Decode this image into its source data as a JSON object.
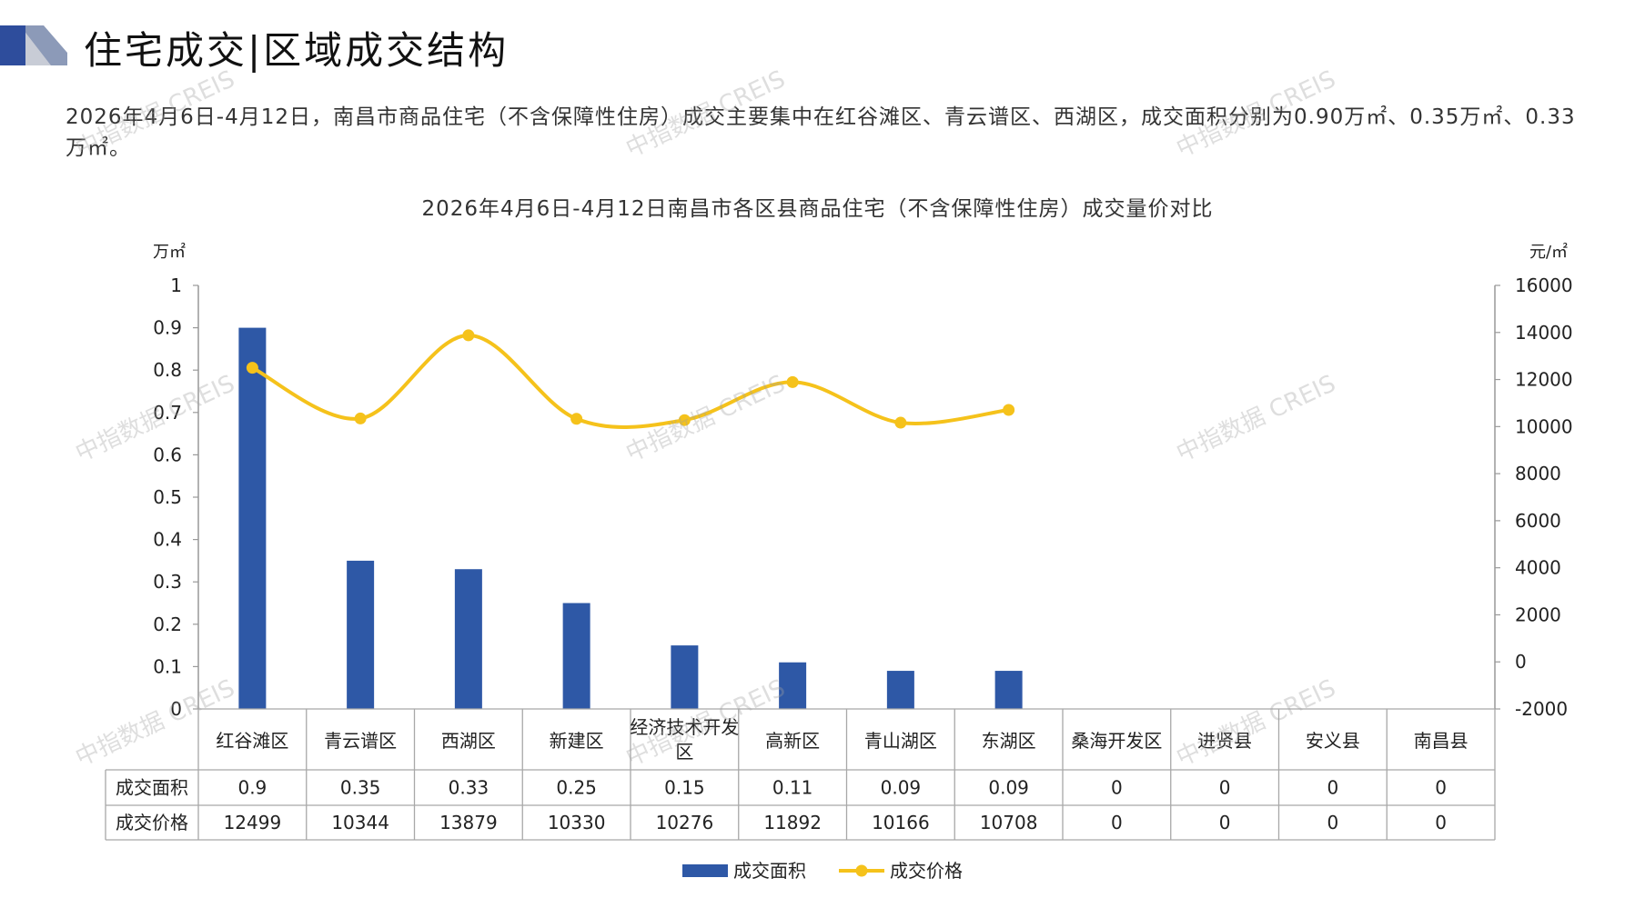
{
  "header": {
    "title": "住宅成交|区域成交结构",
    "deco_colors": [
      "#2e4d9c",
      "#8c9ab8",
      "#c8ccd6"
    ]
  },
  "description": "2026年4月6日-4月12日，南昌市商品住宅（不含保障性住房）成交主要集中在红谷滩区、青云谱区、西湖区，成交面积分别为0.90万㎡、0.35万㎡、0.33万㎡。",
  "watermark": "中指数据 CREIS",
  "chart_data": {
    "type": "bar",
    "title": "2026年4月6日-4月12日南昌市各区县商品住宅（不含保障性住房）成交量价对比",
    "categories": [
      "红谷滩区",
      "青云谱区",
      "西湖区",
      "新建区",
      "经济技术开发区",
      "高新区",
      "青山湖区",
      "东湖区",
      "桑海开发区",
      "进贤县",
      "安义县",
      "南昌县"
    ],
    "ylabel_left": "万㎡",
    "ylabel_right": "元/㎡",
    "ylim_left": [
      0,
      1
    ],
    "yticks_left": [
      "0",
      "0.1",
      "0.2",
      "0.3",
      "0.4",
      "0.5",
      "0.6",
      "0.7",
      "0.8",
      "0.9",
      "1"
    ],
    "ylim_right": [
      -2000,
      16000
    ],
    "yticks_right": [
      "-2000",
      "0",
      "2000",
      "4000",
      "6000",
      "8000",
      "10000",
      "12000",
      "14000",
      "16000"
    ],
    "series": [
      {
        "name": "成交面积",
        "kind": "bar",
        "axis": "left",
        "color": "#2e58a6",
        "values": [
          0.9,
          0.35,
          0.33,
          0.25,
          0.15,
          0.11,
          0.09,
          0.09,
          0,
          0,
          0,
          0
        ],
        "labels": [
          "0.9",
          "0.35",
          "0.33",
          "0.25",
          "0.15",
          "0.11",
          "0.09",
          "0.09",
          "0",
          "0",
          "0",
          "0"
        ]
      },
      {
        "name": "成交价格",
        "kind": "line",
        "axis": "right",
        "color": "#f5c21b",
        "values": [
          12499,
          10344,
          13879,
          10330,
          10276,
          11892,
          10166,
          10708,
          0,
          0,
          0,
          0
        ],
        "labels": [
          "12499",
          "10344",
          "13879",
          "10330",
          "10276",
          "11892",
          "10166",
          "10708",
          "0",
          "0",
          "0",
          "0"
        ],
        "plotted_points": 8
      }
    ],
    "legend_position": "bottom",
    "data_table": true
  }
}
